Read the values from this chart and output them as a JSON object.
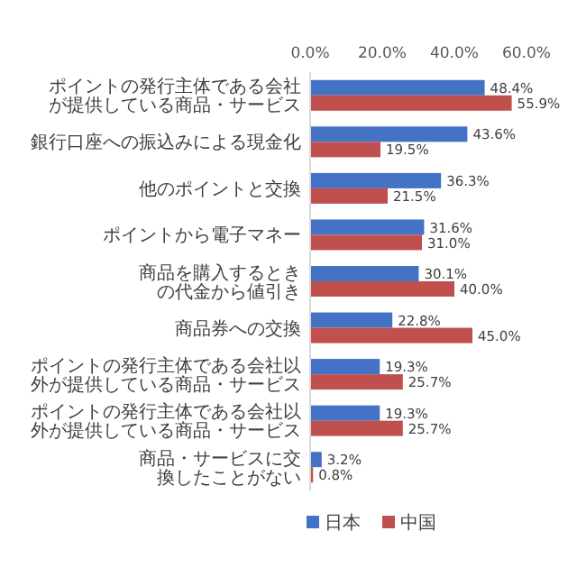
{
  "chart_data": {
    "type": "bar",
    "orientation": "horizontal",
    "categories": [
      "ポイントの発行主体である会社が提供している商品・サービス",
      "銀行口座への振込みによる現金化",
      "他のポイントと交換",
      "ポイントから電子マネー",
      "商品を購入するときの代金から値引き",
      "商品券への交換",
      "ポイントの発行主体である会社以外が提供している商品・サービス",
      "ポイントの発行主体である会社以外が提供している商品・サービス",
      "商品・サービスに交換したことがない"
    ],
    "series": [
      {
        "name": "日本",
        "color": "#4472c4",
        "values": [
          48.4,
          43.6,
          36.3,
          31.6,
          30.1,
          22.8,
          19.3,
          19.3,
          3.2
        ],
        "value_labels": [
          "48.4%",
          "43.6%",
          "36.3%",
          "31.6%",
          "30.1%",
          "22.8%",
          "19.3%",
          "19.3%",
          "3.2%"
        ]
      },
      {
        "name": "中国",
        "color": "#c0504d",
        "values": [
          55.9,
          19.5,
          21.5,
          31.0,
          40.0,
          45.0,
          25.7,
          25.7,
          0.8
        ],
        "value_labels": [
          "55.9%",
          "19.5%",
          "21.5%",
          "31.0%",
          "40.0%",
          "45.0%",
          "25.7%",
          "25.7%",
          "0.8%"
        ]
      }
    ],
    "xlim": [
      0,
      60
    ],
    "xticks": [
      {
        "value": 0,
        "label": "0.0%"
      },
      {
        "value": 20,
        "label": "20.0%"
      },
      {
        "value": 40,
        "label": "40.0%"
      },
      {
        "value": 60,
        "label": "60.0%"
      }
    ],
    "grid": false,
    "legend": "bottom"
  }
}
